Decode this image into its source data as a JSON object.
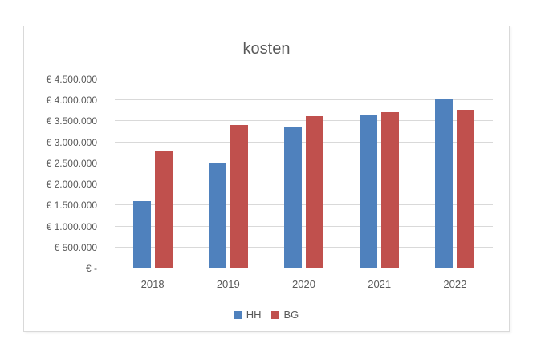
{
  "window": {
    "background": "#ffffff"
  },
  "chart_data": {
    "type": "bar",
    "title": "kosten",
    "categories": [
      "2018",
      "2019",
      "2020",
      "2021",
      "2022"
    ],
    "series": [
      {
        "name": "HH",
        "color": "#4F81BD",
        "values": [
          1600000,
          2500000,
          3350000,
          3650000,
          4050000
        ]
      },
      {
        "name": "BG",
        "color": "#C0504D",
        "values": [
          2780000,
          3420000,
          3620000,
          3720000,
          3770000
        ]
      }
    ],
    "ylim": [
      0,
      4500000
    ],
    "ytick_step": 500000,
    "yticks": [
      {
        "value": 4500000,
        "label": "€ 4.500.000"
      },
      {
        "value": 4000000,
        "label": "€ 4.000.000"
      },
      {
        "value": 3500000,
        "label": "€ 3.500.000"
      },
      {
        "value": 3000000,
        "label": "€ 3.000.000"
      },
      {
        "value": 2500000,
        "label": "€ 2.500.000"
      },
      {
        "value": 2000000,
        "label": "€ 2.000.000"
      },
      {
        "value": 1500000,
        "label": "€ 1.500.000"
      },
      {
        "value": 1000000,
        "label": "€ 1.000.000"
      },
      {
        "value": 500000,
        "label": "€ 500.000"
      },
      {
        "value": 0,
        "label": "€ -"
      }
    ],
    "grid": true,
    "legend_position": "bottom",
    "colors": {
      "grid": "#D9D9D9",
      "axis_text": "#595959",
      "title_text": "#595959",
      "frame_border": "#D9D9D9"
    }
  }
}
